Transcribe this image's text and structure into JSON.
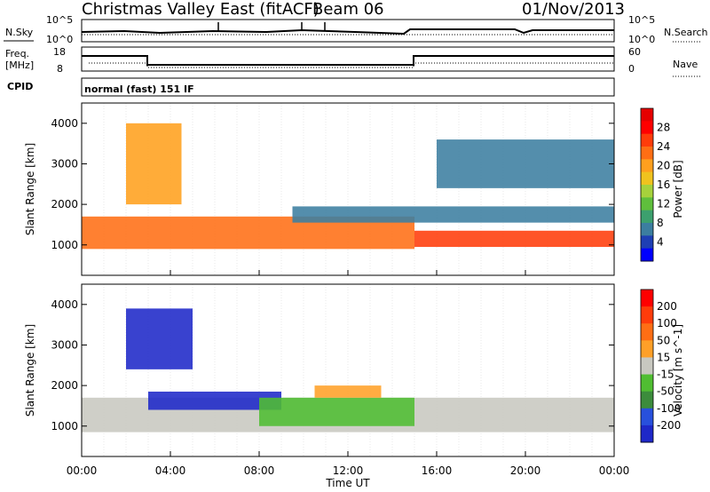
{
  "header": {
    "station": "Christmas Valley East (fitACF)",
    "beam": "Beam 06",
    "date": "01/Nov/2013"
  },
  "top_panels": {
    "nsky_label": "N.Sky",
    "nsearch_label": "N.Search",
    "freq_label_1": "Freq.",
    "freq_label_2": "[MHz]",
    "nave_label": "Nave",
    "cpid_label": "CPID",
    "cpid_text": "normal (fast) 151 IF",
    "noise_ticks": [
      "10^5",
      "10^0"
    ],
    "noise_right_ticks": [
      "10^5",
      "10^0"
    ],
    "freq_ticks": [
      "18",
      "8"
    ],
    "nave_ticks": [
      "60",
      "0"
    ]
  },
  "chart_data": [
    {
      "type": "heatmap",
      "name": "power",
      "ylabel": "Slant Range [km]",
      "xlabel": "",
      "yticks": [
        1000,
        2000,
        3000,
        4000
      ],
      "ylim": [
        250,
        4500
      ],
      "xlim": [
        0,
        24
      ],
      "colorbar": {
        "label": "Power [dB]",
        "ticks": [
          "28",
          "24",
          "20",
          "16",
          "12",
          "8",
          "4"
        ],
        "colors": [
          "#0000ff",
          "#1e3fb4",
          "#3c7ea0",
          "#3ca06e",
          "#5fbf3c",
          "#a6d23c",
          "#f0c31e",
          "#ffa01e",
          "#ff6e14",
          "#ff3c0a",
          "#ff0000",
          "#e60000"
        ]
      },
      "bands": [
        {
          "label": "near-range echoes",
          "x0": 0.0,
          "x1": 15.0,
          "y0": 900,
          "y1": 1700,
          "power_db": 22
        },
        {
          "label": "main band",
          "x0": 15.0,
          "x1": 24.0,
          "y0": 950,
          "y1": 1350,
          "power_db": 26
        },
        {
          "label": "upper band",
          "x0": 9.5,
          "x1": 24.0,
          "y0": 1550,
          "y1": 1950,
          "power_db": 8
        },
        {
          "label": "scattered far range",
          "x0": 2.0,
          "x1": 4.5,
          "y0": 2000,
          "y1": 4000,
          "power_db": 20
        },
        {
          "label": "far range blue",
          "x0": 16.0,
          "x1": 24.0,
          "y0": 2400,
          "y1": 3600,
          "power_db": 6
        }
      ]
    },
    {
      "type": "heatmap",
      "name": "velocity",
      "ylabel": "Slant Range [km]",
      "xlabel": "Time UT",
      "yticks": [
        1000,
        2000,
        3000,
        4000
      ],
      "ylim": [
        250,
        4500
      ],
      "xlim": [
        0,
        24
      ],
      "xticks": [
        "00:00",
        "04:00",
        "08:00",
        "12:00",
        "16:00",
        "20:00",
        "00:00"
      ],
      "colorbar": {
        "label": "Velocity [m s^-1]",
        "ticks": [
          "200",
          "100",
          "50",
          "15",
          "-15",
          "-50",
          "-100",
          "-200"
        ],
        "colors": [
          "#1e28c8",
          "#2850dc",
          "#3c8c3c",
          "#50be32",
          "#c8c8c0",
          "#ffa028",
          "#ff6e14",
          "#ff3c0a",
          "#ff0000"
        ]
      },
      "bands": [
        {
          "label": "ground scatter",
          "x0": 0.0,
          "x1": 24.0,
          "y0": 850,
          "y1": 1700,
          "velocity": 0
        },
        {
          "label": "blue patch",
          "x0": 3.0,
          "x1": 9.0,
          "y0": 1400,
          "y1": 1850,
          "velocity": 180
        },
        {
          "label": "green patch",
          "x0": 8.0,
          "x1": 15.0,
          "y0": 1000,
          "y1": 1700,
          "velocity": 60
        },
        {
          "label": "orange patch",
          "x0": 10.5,
          "x1": 13.5,
          "y0": 1700,
          "y1": 2000,
          "velocity": -60
        },
        {
          "label": "far blue",
          "x0": 2.0,
          "x1": 5.0,
          "y0": 2400,
          "y1": 3900,
          "velocity": 180
        }
      ]
    }
  ]
}
